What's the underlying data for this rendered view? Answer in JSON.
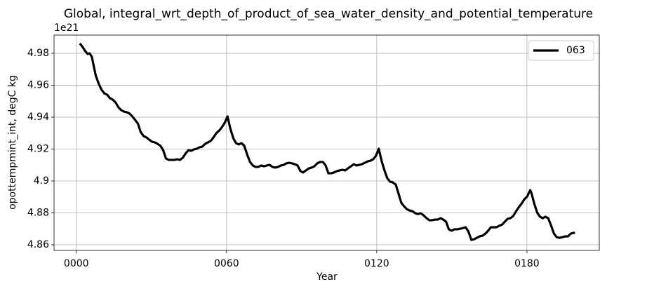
{
  "chart_data": {
    "type": "line",
    "title": "Global, integral_wrt_depth_of_product_of_sea_water_density_and_potential_temperature",
    "x_label": "Year",
    "y_label": "opottempmint_int, degC kg",
    "y_offset_label": "1e21",
    "grid": true,
    "legend": "upper right",
    "xlim": [
      -8.9,
      208.9
    ],
    "ylim": [
      4.8565,
      4.9914
    ],
    "xticks": [
      {
        "value": 0,
        "label": "0000"
      },
      {
        "value": 60,
        "label": "0060"
      },
      {
        "value": 120,
        "label": "0120"
      },
      {
        "value": 180,
        "label": "0180"
      }
    ],
    "yticks": [
      4.86,
      4.88,
      4.9,
      4.92,
      4.94,
      4.96,
      4.98
    ],
    "x": [
      1.4,
      2.5,
      3.6,
      4.5,
      5.3,
      6.2,
      7.0,
      7.8,
      9.0,
      10.1,
      11.2,
      12.3,
      13.4,
      14.5,
      15.7,
      16.8,
      17.9,
      19.0,
      20.1,
      21.3,
      22.4,
      23.5,
      24.6,
      25.7,
      26.9,
      28.0,
      29.1,
      30.2,
      31.3,
      32.4,
      33.6,
      34.7,
      35.8,
      36.9,
      38.0,
      39.2,
      40.3,
      41.4,
      42.5,
      43.6,
      44.8,
      45.9,
      47.0,
      48.1,
      49.2,
      50.3,
      51.5,
      52.6,
      53.7,
      54.8,
      55.9,
      57.1,
      58.2,
      59.3,
      60.4,
      61.5,
      62.7,
      63.8,
      64.9,
      66.0,
      67.1,
      68.3,
      69.4,
      70.5,
      71.6,
      72.7,
      73.8,
      75.0,
      76.1,
      77.2,
      78.3,
      79.4,
      80.6,
      81.7,
      82.8,
      83.9,
      85.0,
      86.2,
      87.3,
      88.4,
      89.5,
      90.6,
      91.7,
      92.9,
      94.0,
      95.1,
      96.2,
      97.3,
      98.5,
      99.6,
      100.7,
      101.8,
      102.9,
      104.1,
      105.2,
      106.3,
      107.4,
      108.5,
      109.7,
      110.8,
      111.9,
      113.0,
      114.1,
      115.2,
      116.4,
      117.5,
      118.6,
      119.7,
      120.8,
      122.0,
      123.1,
      124.2,
      125.3,
      126.4,
      127.6,
      128.7,
      129.8,
      130.9,
      132.0,
      133.1,
      134.3,
      135.4,
      136.5,
      137.6,
      138.7,
      139.9,
      141.0,
      142.1,
      143.2,
      144.3,
      145.5,
      146.6,
      147.7,
      148.8,
      149.9,
      151.0,
      152.2,
      153.3,
      154.4,
      155.5,
      156.6,
      157.8,
      158.9,
      160.0,
      161.1,
      162.2,
      163.4,
      164.5,
      165.6,
      166.7,
      167.8,
      168.9,
      170.1,
      171.2,
      172.3,
      173.4,
      174.5,
      175.7,
      176.8,
      177.9,
      179.0,
      180.1,
      181.3,
      181.8,
      182.9,
      184.1,
      185.2,
      186.3,
      187.4,
      188.5,
      189.7,
      190.8,
      191.9,
      193.0,
      194.1,
      195.3,
      196.4,
      197.5,
      198.6,
      199.2
    ],
    "series": [
      {
        "name": "063",
        "color": "#000000",
        "values": [
          4.9862,
          4.984,
          4.9813,
          4.9796,
          4.98,
          4.9778,
          4.9717,
          4.9659,
          4.9607,
          4.9571,
          4.9549,
          4.9541,
          4.9519,
          4.951,
          4.9492,
          4.9462,
          4.9444,
          4.9435,
          4.9431,
          4.9422,
          4.9404,
          4.9382,
          4.936,
          4.9307,
          4.9281,
          4.9273,
          4.9259,
          4.9246,
          4.9242,
          4.9233,
          4.922,
          4.9193,
          4.9141,
          4.9132,
          4.9132,
          4.9132,
          4.9136,
          4.9132,
          4.9145,
          4.9171,
          4.9193,
          4.9189,
          4.9198,
          4.9202,
          4.9211,
          4.9215,
          4.9233,
          4.9242,
          4.9251,
          4.9273,
          4.9299,
          4.9316,
          4.9338,
          4.9365,
          4.9404,
          4.933,
          4.9268,
          4.9237,
          4.9229,
          4.9237,
          4.922,
          4.9163,
          4.9119,
          4.9097,
          4.9088,
          4.9088,
          4.9097,
          4.9092,
          4.9097,
          4.9101,
          4.9088,
          4.9084,
          4.9088,
          4.9097,
          4.9101,
          4.911,
          4.9114,
          4.911,
          4.9105,
          4.9097,
          4.9062,
          4.9053,
          4.9066,
          4.9079,
          4.9084,
          4.9092,
          4.911,
          4.9119,
          4.9119,
          4.9097,
          4.9048,
          4.9048,
          4.9053,
          4.9062,
          4.9066,
          4.907,
          4.9066,
          4.9079,
          4.9092,
          4.9105,
          4.9097,
          4.9101,
          4.9105,
          4.9114,
          4.9123,
          4.9127,
          4.9136,
          4.9158,
          4.9202,
          4.9123,
          4.9066,
          4.9018,
          4.8996,
          4.8991,
          4.8978,
          4.8921,
          4.8864,
          4.8842,
          4.8824,
          4.8815,
          4.8811,
          4.8798,
          4.8793,
          4.8798,
          4.8785,
          4.8767,
          4.8754,
          4.8754,
          4.8758,
          4.8758,
          4.8767,
          4.8758,
          4.8745,
          4.8697,
          4.8688,
          4.8697,
          4.8697,
          4.8701,
          4.8705,
          4.871,
          4.8684,
          4.8631,
          4.8635,
          4.8644,
          4.8653,
          4.8657,
          4.867,
          4.8688,
          4.871,
          4.871,
          4.871,
          4.8719,
          4.8727,
          4.8745,
          4.8763,
          4.8767,
          4.878,
          4.8811,
          4.8837,
          4.8859,
          4.8886,
          4.8903,
          4.8943,
          4.8925,
          4.8859,
          4.8802,
          4.8776,
          4.8767,
          4.8776,
          4.8767,
          4.8719,
          4.867,
          4.8648,
          4.8644,
          4.8648,
          4.8653,
          4.8653,
          4.867,
          4.8675,
          4.8675
        ]
      }
    ]
  }
}
